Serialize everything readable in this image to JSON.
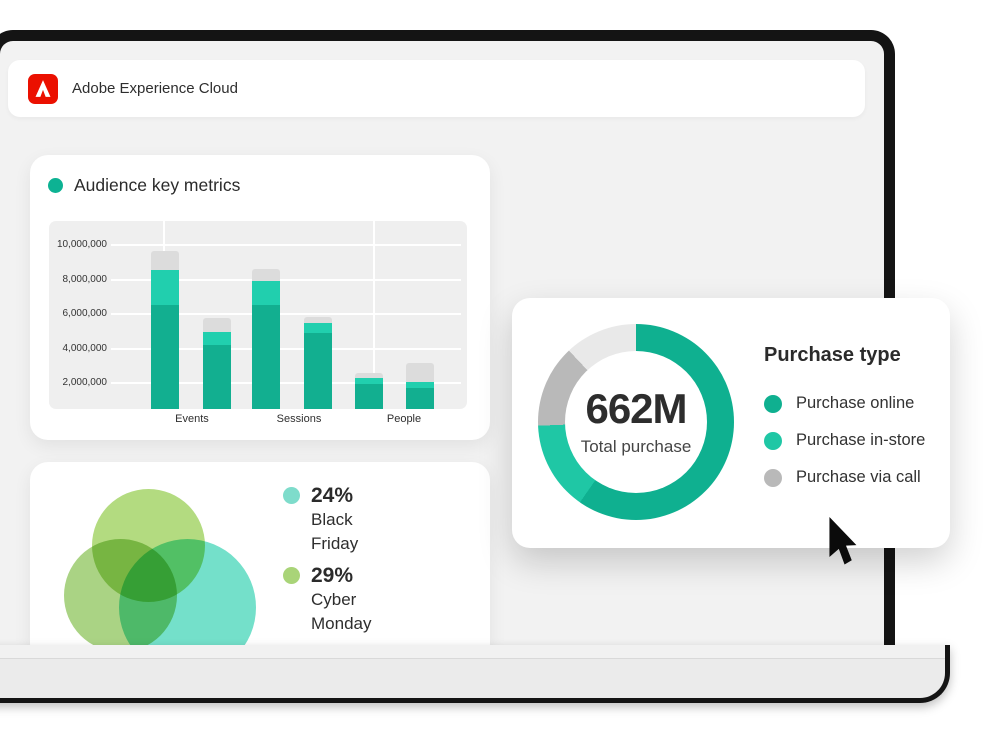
{
  "app_bar": {
    "title": "Adobe Experience Cloud",
    "logo_color": "#eb1000"
  },
  "chart_data": [
    {
      "type": "bar",
      "title": "Audience key metrics",
      "title_dot_color": "#0db293",
      "stacked": true,
      "categories": [
        "Events",
        "Sessions",
        "People"
      ],
      "y_ticks": [
        "10,000,000",
        "8,000,000",
        "6,000,000",
        "4,000,000",
        "2,000,000"
      ],
      "ylim": [
        0,
        10900000
      ],
      "grid": true,
      "segment_colors": {
        "base": "#12af90",
        "mid": "#21cfae",
        "top": "#dcdcdc"
      },
      "bars": [
        {
          "category": "Events",
          "cumulative_millions": {
            "base": 6.55,
            "mid": 8.55,
            "top": 9.65
          }
        },
        {
          "category": "Events",
          "cumulative_millions": {
            "base": 4.2,
            "mid": 4.95,
            "top": 5.75
          }
        },
        {
          "category": "Sessions",
          "cumulative_millions": {
            "base": 6.55,
            "mid": 7.9,
            "top": 8.6
          }
        },
        {
          "category": "Sessions",
          "cumulative_millions": {
            "base": 4.9,
            "mid": 5.45,
            "top": 5.85
          }
        },
        {
          "category": "People",
          "cumulative_millions": {
            "base": 1.95,
            "mid": 2.3,
            "top": 2.6
          }
        },
        {
          "category": "People",
          "cumulative_millions": {
            "base": 1.7,
            "mid": 2.05,
            "top": 3.15
          }
        }
      ]
    },
    {
      "type": "donut",
      "center_value": "662M",
      "center_label": "Total purchase",
      "legend_title": "Purchase type",
      "legend_position": "right",
      "segments": [
        {
          "label": "Purchase online",
          "percent": 59.7,
          "color": "#0fb090",
          "in_legend": true
        },
        {
          "label": "Purchase in-store",
          "percent": 14.7,
          "color": "#1fc7a5",
          "in_legend": true
        },
        {
          "label": "Purchase via call",
          "percent": 13.6,
          "color": "#b9b9b9",
          "in_legend": true
        },
        {
          "label": "Remainder",
          "percent": 12.0,
          "color": "#e9e9e9",
          "in_legend": false
        }
      ]
    },
    {
      "type": "venn",
      "items": [
        {
          "value": "24%",
          "label": "Black Friday",
          "color": "#7edccb"
        },
        {
          "value": "29%",
          "label": "Cyber Monday",
          "color": "#a9d478"
        }
      ],
      "circle_colors": {
        "top": "#b3db80",
        "left": "#aad384",
        "right": "#74e0ca"
      }
    }
  ]
}
